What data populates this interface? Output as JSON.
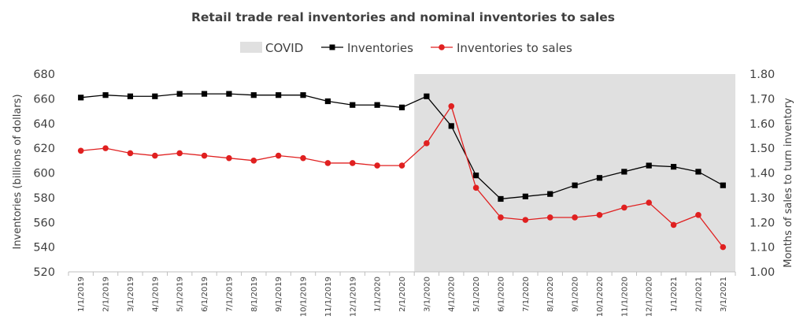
{
  "chart_data": {
    "type": "line",
    "title": "Retail trade real inventories and nominal inventories to sales",
    "ylabel_left": "Inventories (billions of dollars)",
    "ylabel_right": "Months of sales to turn inventory",
    "ylim_left": [
      520,
      680
    ],
    "yticks_left": [
      "520",
      "540",
      "560",
      "580",
      "600",
      "620",
      "640",
      "660",
      "680"
    ],
    "ylim_right": [
      1.0,
      1.8
    ],
    "yticks_right": [
      "1.00",
      "1.10",
      "1.20",
      "1.30",
      "1.40",
      "1.50",
      "1.60",
      "1.70",
      "1.80"
    ],
    "categories": [
      "1/1/2019",
      "2/1/2019",
      "3/1/2019",
      "4/1/2019",
      "5/1/2019",
      "6/1/2019",
      "7/1/2019",
      "8/1/2019",
      "9/1/2019",
      "10/1/2019",
      "11/1/2019",
      "12/1/2019",
      "1/1/2020",
      "2/1/2020",
      "3/1/2020",
      "4/1/2020",
      "5/1/2020",
      "6/1/2020",
      "7/1/2020",
      "8/1/2020",
      "9/1/2020",
      "10/1/2020",
      "11/1/2020",
      "12/1/2020",
      "1/1/2021",
      "2/1/2021",
      "3/1/2021"
    ],
    "legend_position": "top",
    "grid": false,
    "shaded_region": {
      "name": "COVID",
      "start": "3/1/2020",
      "end": "3/1/2021",
      "color": "#e0e0e0"
    },
    "series": [
      {
        "name": "Inventories",
        "axis": "left",
        "color": "#000000",
        "marker": "square",
        "values": [
          661,
          663,
          662,
          662,
          664,
          664,
          664,
          663,
          663,
          663,
          658,
          655,
          655,
          653,
          662,
          638,
          598,
          579,
          581,
          583,
          590,
          596,
          601,
          606,
          605,
          601,
          590
        ]
      },
      {
        "name": "Inventories to sales",
        "axis": "right",
        "color": "#e02020",
        "marker": "circle",
        "values": [
          1.49,
          1.5,
          1.48,
          1.47,
          1.48,
          1.47,
          1.46,
          1.45,
          1.47,
          1.46,
          1.44,
          1.44,
          1.43,
          1.43,
          1.52,
          1.67,
          1.34,
          1.22,
          1.21,
          1.22,
          1.22,
          1.23,
          1.26,
          1.28,
          1.19,
          1.23,
          1.1
        ]
      }
    ]
  }
}
